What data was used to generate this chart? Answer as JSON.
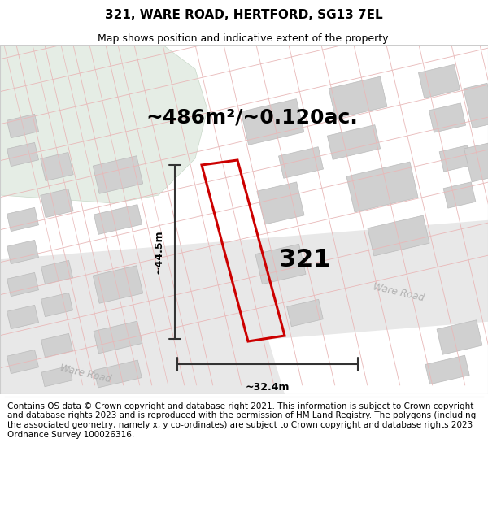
{
  "title": "321, WARE ROAD, HERTFORD, SG13 7EL",
  "subtitle": "Map shows position and indicative extent of the property.",
  "area_label": "~486m²/~0.120ac.",
  "width_label": "~32.4m",
  "height_label": "~44.5m",
  "number_label": "321",
  "footer": "Contains OS data © Crown copyright and database right 2021. This information is subject to Crown copyright and database rights 2023 and is reproduced with the permission of HM Land Registry. The polygons (including the associated geometry, namely x, y co-ordinates) are subject to Crown copyright and database rights 2023 Ordnance Survey 100026316.",
  "map_bg": "#ffffff",
  "road_fill": "#e8e8e8",
  "building_color": "#d0d0d0",
  "building_edge": "#bbbbbb",
  "highlight_color": "#cc0000",
  "green_color": "#e5ede5",
  "green_edge": "#c8d8c8",
  "boundary_color": "#e8b8b8",
  "dim_line_color": "#333333",
  "road_label_color": "#b0b0b0",
  "title_fontsize": 11,
  "subtitle_fontsize": 9,
  "area_fontsize": 18,
  "dim_fontsize": 9,
  "number_fontsize": 22,
  "footer_fontsize": 7.5
}
